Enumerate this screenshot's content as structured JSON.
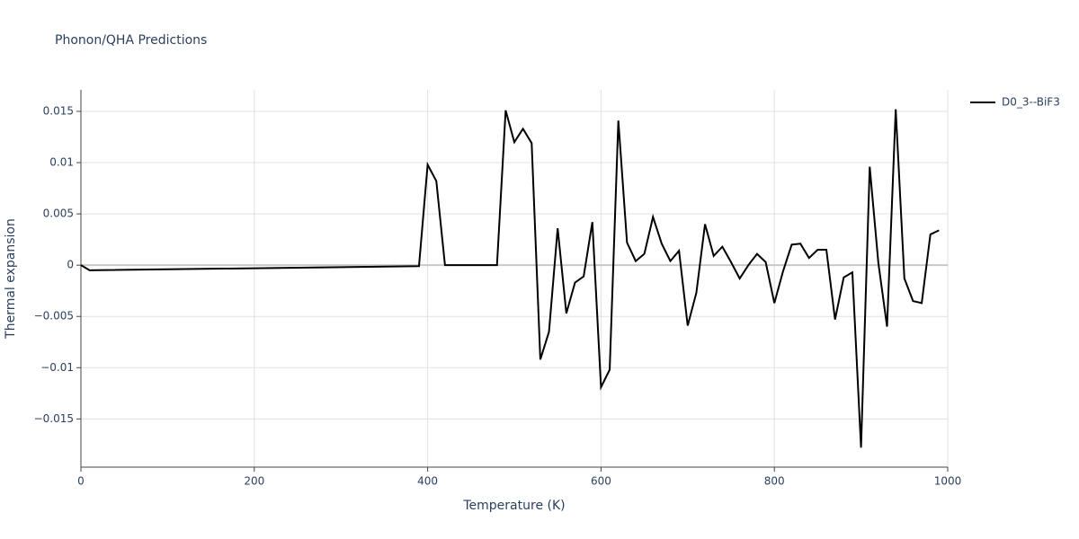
{
  "chart_data": {
    "type": "line",
    "title": "Phonon/QHA Predictions",
    "x_label": "Temperature (K)",
    "y_label": "Thermal expansion",
    "x": [
      0,
      10,
      390,
      400,
      410,
      420,
      480,
      490,
      500,
      510,
      520,
      530,
      540,
      550,
      560,
      570,
      580,
      590,
      600,
      610,
      620,
      630,
      640,
      650,
      660,
      670,
      680,
      690,
      700,
      710,
      720,
      730,
      740,
      750,
      760,
      770,
      780,
      790,
      800,
      810,
      820,
      830,
      840,
      850,
      860,
      870,
      880,
      890,
      900,
      910,
      920,
      930,
      940,
      950,
      960,
      970,
      980,
      990
    ],
    "series": [
      {
        "name": "D0_3--BiF3",
        "color": "#000000",
        "values": [
          0,
          -0.0005,
          -0.0001,
          0.0098,
          0.0082,
          0,
          0,
          0.0151,
          0.012,
          0.0133,
          0.0119,
          -0.0092,
          -0.0065,
          0.0036,
          -0.0047,
          -0.0017,
          -0.0011,
          0.0042,
          -0.0119,
          -0.0102,
          0.0141,
          0.0022,
          0.0004,
          0.0011,
          0.0047,
          0.0021,
          0.0004,
          0.0014,
          -0.0059,
          -0.0027,
          0.004,
          0.0009,
          0.0018,
          0.0003,
          -0.0013,
          0,
          0.0011,
          0.0003,
          -0.0037,
          -0.0006,
          0.002,
          0.0021,
          0.0007,
          0.0015,
          0.0015,
          -0.0053,
          -0.0012,
          -0.0007,
          -0.0178,
          0.0096,
          0.0002,
          -0.006,
          0.0152,
          -0.0013,
          -0.0035,
          -0.0037,
          0.003,
          0.0034
        ]
      }
    ],
    "xlim": [
      0,
      1000
    ],
    "xticks": [
      0,
      200,
      400,
      600,
      800,
      1000
    ],
    "ylim": [
      -0.0197,
      0.0171
    ],
    "yticks": [
      {
        "value": -0.015,
        "label": "−0.015"
      },
      {
        "value": -0.01,
        "label": "−0.01"
      },
      {
        "value": -0.005,
        "label": "−0.005"
      },
      0,
      0.005,
      0.01,
      0.015
    ],
    "grid": true,
    "legend": "right"
  }
}
